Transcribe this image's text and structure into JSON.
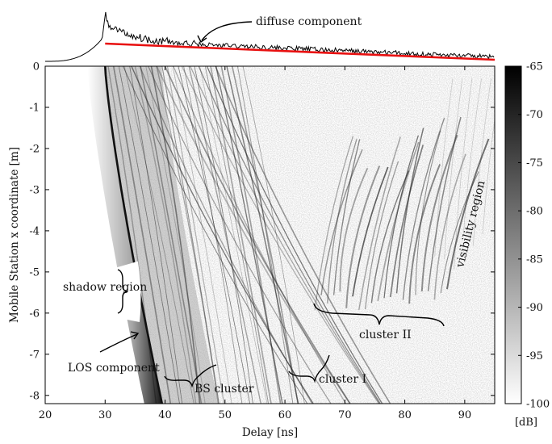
{
  "chart_data": {
    "type": "heatmap",
    "x": {
      "label": "Delay [ns]",
      "range": [
        20,
        95
      ],
      "ticks": [
        20,
        30,
        40,
        50,
        60,
        70,
        80,
        90
      ]
    },
    "y": {
      "label": "Mobile Station x coordinate [m]",
      "range": [
        -8.2,
        0
      ],
      "ticks": [
        0,
        -1,
        -2,
        -3,
        -4,
        -5,
        -6,
        -7,
        -8
      ]
    },
    "colorbar": {
      "unit": "[dB]",
      "range": [
        -100,
        -65
      ],
      "ticks": [
        -65,
        -70,
        -75,
        -80,
        -85,
        -90,
        -95,
        -100
      ],
      "colormap": "grayscale, white=-100 dB, black=-65 dB"
    },
    "los_component": {
      "delay_at_0m": 30,
      "delay_at_-8.2m": 39.5
    },
    "shadow_region": {
      "delay_range": [
        33.6,
        35.2
      ],
      "x_range": [
        -6.1,
        -4.9
      ]
    },
    "annotations": [
      {
        "text": "diffuse component",
        "points_to": [
          46,
          "top-PDP"
        ]
      },
      {
        "text": "shadow region"
      },
      {
        "text": "LOS component"
      },
      {
        "text": "BS cluster"
      },
      {
        "text": "cluster I"
      },
      {
        "text": "cluster II"
      },
      {
        "text": "visibility region"
      }
    ],
    "pdp_inset": {
      "description": "power delay profile above map",
      "trend_line": {
        "x": [
          30,
          95
        ],
        "color": "#e81010"
      }
    }
  }
}
